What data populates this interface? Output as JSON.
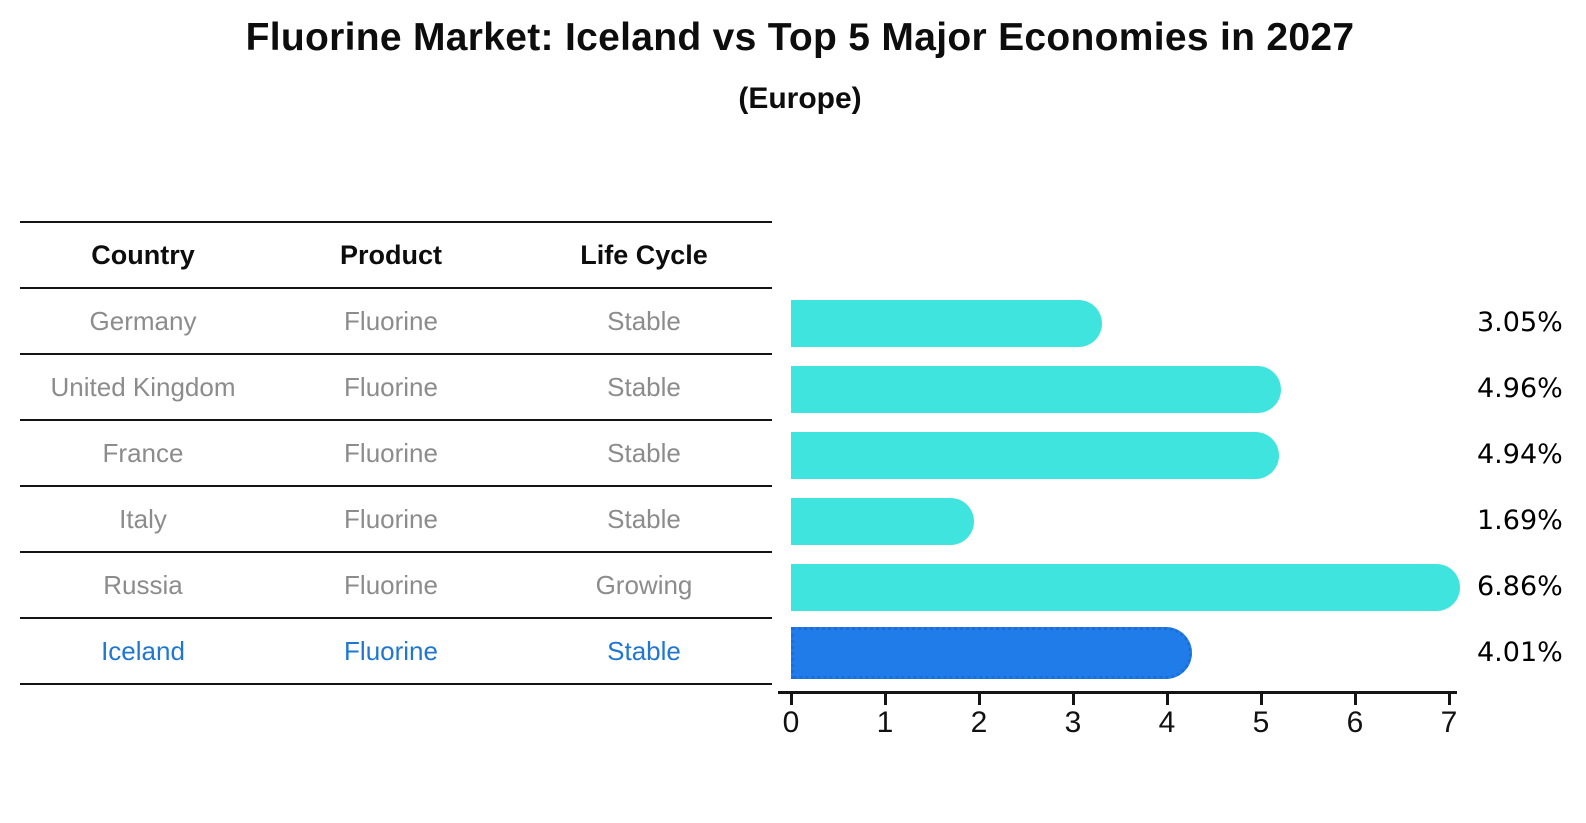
{
  "title": "Fluorine Market: Iceland vs Top 5 Major Economies in 2027",
  "subtitle": "(Europe)",
  "table": {
    "headers": [
      "Country",
      "Product",
      "Life Cycle"
    ],
    "rows": [
      {
        "country": "Germany",
        "product": "Fluorine",
        "life_cycle": "Stable",
        "highlight": false
      },
      {
        "country": "United Kingdom",
        "product": "Fluorine",
        "life_cycle": "Stable",
        "highlight": false
      },
      {
        "country": "France",
        "product": "Fluorine",
        "life_cycle": "Stable",
        "highlight": false
      },
      {
        "country": "Italy",
        "product": "Fluorine",
        "life_cycle": "Stable",
        "highlight": false
      },
      {
        "country": "Russia",
        "product": "Fluorine",
        "life_cycle": "Growing",
        "highlight": false
      },
      {
        "country": "Iceland",
        "product": "Fluorine",
        "life_cycle": "Stable",
        "highlight": true
      }
    ]
  },
  "chart_data": {
    "type": "bar",
    "orientation": "horizontal",
    "title": "Fluorine Market: Iceland vs Top 5 Major Economies in 2027",
    "subtitle": "(Europe)",
    "categories": [
      "Germany",
      "United Kingdom",
      "France",
      "Italy",
      "Russia",
      "Iceland"
    ],
    "values": [
      3.05,
      4.96,
      4.94,
      1.69,
      6.86,
      4.01
    ],
    "value_labels": [
      "3.05%",
      "4.96%",
      "4.94%",
      "1.69%",
      "6.86%",
      "4.01%"
    ],
    "xlim": [
      0,
      7
    ],
    "x_ticks": [
      "0",
      "1",
      "2",
      "3",
      "4",
      "5",
      "6",
      "7"
    ],
    "grid": false,
    "legend": false,
    "highlight_index": 5
  },
  "colors": {
    "bar": "#40E4DE",
    "highlight_bar": "#1F7CE8",
    "highlight_text": "#1F77D2",
    "body_text": "#8C8C8C",
    "line": "#141414"
  }
}
